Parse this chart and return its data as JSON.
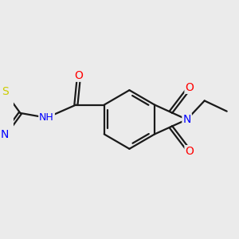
{
  "background_color": "#ebebeb",
  "bond_color": "#1a1a1a",
  "atom_colors": {
    "O": "#ff0000",
    "N": "#0000ff",
    "S": "#cccc00",
    "C": "#1a1a1a"
  },
  "figsize": [
    3.0,
    3.0
  ],
  "dpi": 100,
  "bond_lw": 1.6,
  "font_size": 9
}
